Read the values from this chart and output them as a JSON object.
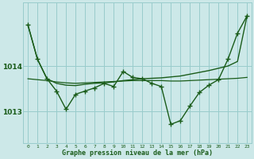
{
  "xlabel": "Graphe pression niveau de la mer (hPa)",
  "background_color": "#cce8e8",
  "grid_color": "#99cccc",
  "line_color": "#1a5c1a",
  "xlim": [
    -0.5,
    23.5
  ],
  "ylim": [
    1012.3,
    1015.4
  ],
  "yticks": [
    1013,
    1014
  ],
  "xticks": [
    0,
    1,
    2,
    3,
    4,
    5,
    6,
    7,
    8,
    9,
    10,
    11,
    12,
    13,
    14,
    15,
    16,
    17,
    18,
    19,
    20,
    21,
    22,
    23
  ],
  "series": [
    {
      "x": [
        0,
        1,
        2,
        3,
        4,
        5,
        6,
        7,
        8,
        9,
        10,
        11,
        12,
        13,
        14,
        15,
        16,
        17,
        18,
        19,
        20,
        21,
        22,
        23
      ],
      "y": [
        1014.9,
        1014.15,
        1013.72,
        1013.62,
        1013.58,
        1013.57,
        1013.6,
        1013.62,
        1013.63,
        1013.65,
        1013.68,
        1013.7,
        1013.72,
        1013.73,
        1013.74,
        1013.76,
        1013.78,
        1013.82,
        1013.86,
        1013.9,
        1013.95,
        1014.0,
        1014.1,
        1015.1
      ],
      "markers": false,
      "linewidth": 1.0
    },
    {
      "x": [
        0,
        1,
        2,
        3,
        4,
        5,
        6,
        7,
        8,
        9,
        10,
        11,
        12,
        13,
        14,
        15,
        16,
        17,
        18,
        19,
        20,
        21,
        22,
        23
      ],
      "y": [
        1013.72,
        1013.7,
        1013.68,
        1013.65,
        1013.63,
        1013.62,
        1013.63,
        1013.64,
        1013.65,
        1013.66,
        1013.67,
        1013.68,
        1013.68,
        1013.68,
        1013.68,
        1013.67,
        1013.67,
        1013.68,
        1013.69,
        1013.7,
        1013.71,
        1013.72,
        1013.73,
        1013.75
      ],
      "markers": false,
      "linewidth": 0.9
    },
    {
      "x": [
        0,
        1,
        2,
        3,
        4,
        5,
        6,
        7,
        8,
        9,
        10,
        11,
        12,
        13,
        14,
        15,
        16,
        17,
        18,
        19,
        20,
        21,
        22,
        23
      ],
      "y": [
        1014.9,
        1014.15,
        1013.72,
        1013.45,
        1013.05,
        1013.38,
        1013.45,
        1013.52,
        1013.62,
        1013.55,
        1013.88,
        1013.75,
        1013.72,
        1013.62,
        1013.55,
        1012.72,
        1012.8,
        1013.12,
        1013.42,
        1013.58,
        1013.7,
        1014.15,
        1014.72,
        1015.1
      ],
      "markers": true,
      "linewidth": 1.0
    }
  ]
}
